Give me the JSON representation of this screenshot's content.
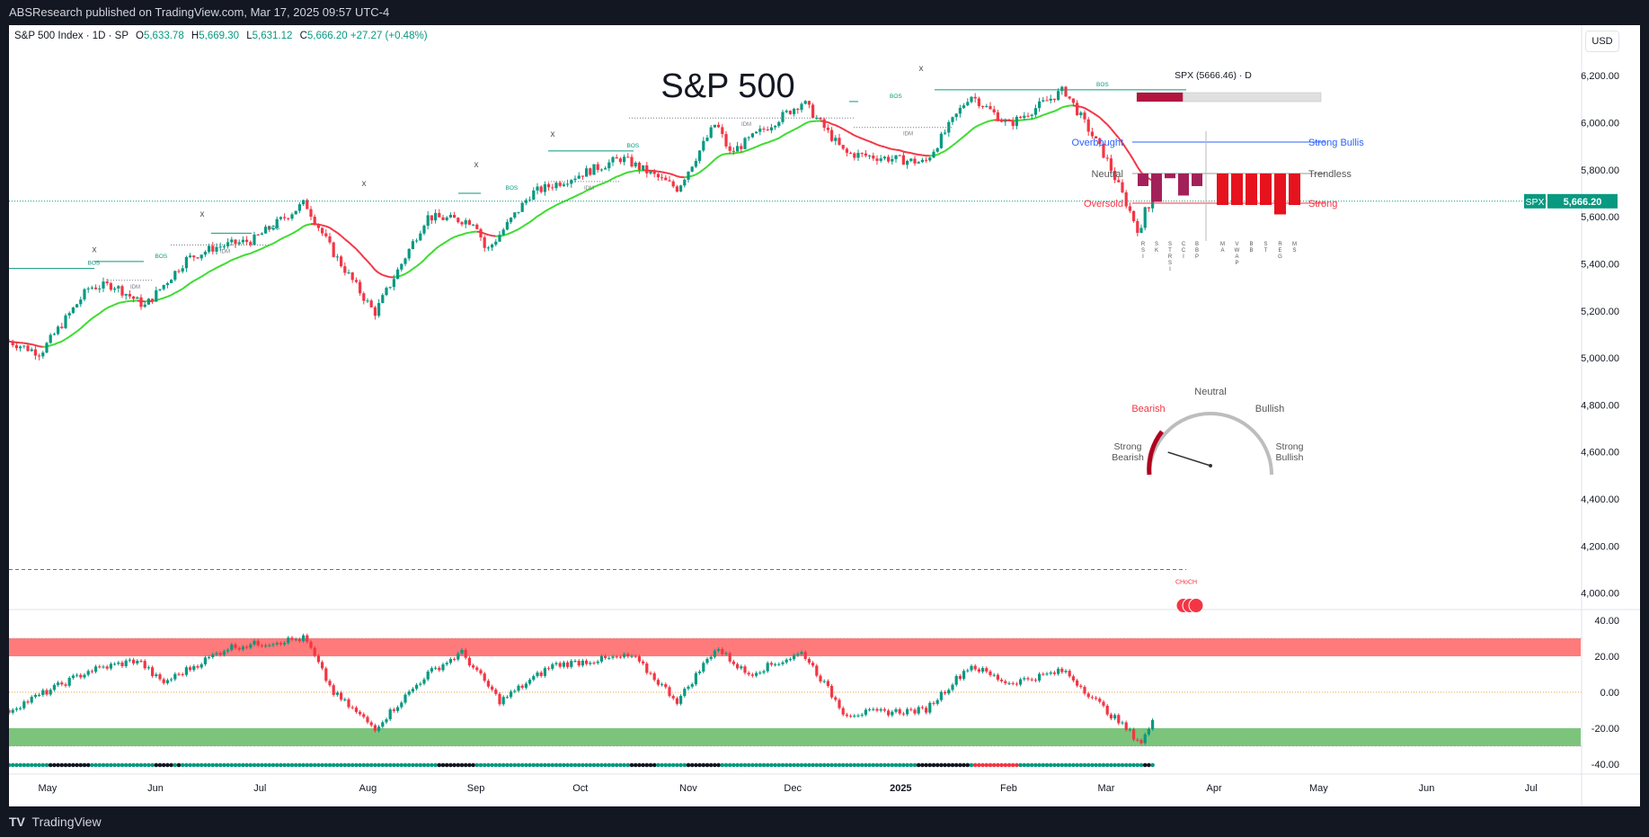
{
  "header": {
    "published_line": "ABSResearch published on TradingView.com, Mar 17, 2025 09:57 UTC-4"
  },
  "footer": {
    "brand": "TradingView"
  },
  "currency": "USD",
  "legend": {
    "symbol": "S&P 500 Index · 1D · SP",
    "open_label": "O",
    "open": "5,633.78",
    "high_label": "H",
    "high": "5,669.30",
    "low_label": "L",
    "low": "5,631.12",
    "close_label": "C",
    "close": "5,666.20",
    "change": "+27.27 (+0.48%)"
  },
  "colors": {
    "up": "#089981",
    "down": "#f23645",
    "ema_up": "#3ddc2f",
    "ema_down": "#f23645",
    "overbought_zone": "#ff7a7a",
    "oversold_zone": "#7cc47c",
    "zero_line": "#e8a33d"
  },
  "chart_data": [
    {
      "type": "candlestick",
      "title": "S&P 500",
      "x_ticks": [
        "May",
        "Jun",
        "Jul",
        "Aug",
        "Sep",
        "Oct",
        "Nov",
        "Dec",
        "2025",
        "Feb",
        "Mar",
        "Apr",
        "May",
        "Jun",
        "Jul"
      ],
      "y_ticks": [
        "6,200.00",
        "6,000.00",
        "5,800.00",
        "5,600.00",
        "5,400.00",
        "5,200.00",
        "5,000.00",
        "4,800.00",
        "4,600.00",
        "4,400.00",
        "4,200.00",
        "4,000.00"
      ],
      "ylim": [
        3930,
        6300
      ],
      "price_label_symbol": "SPX",
      "last_price": 5666.2,
      "last_price_label": "5,666.20",
      "close_path": [
        [
          "2024-04-22",
          5070
        ],
        [
          "2024-05-01",
          5020
        ],
        [
          "2024-05-15",
          5300
        ],
        [
          "2024-05-22",
          5310
        ],
        [
          "2024-05-31",
          5220
        ],
        [
          "2024-06-12",
          5420
        ],
        [
          "2024-06-20",
          5470
        ],
        [
          "2024-07-01",
          5500
        ],
        [
          "2024-07-16",
          5660
        ],
        [
          "2024-07-24",
          5450
        ],
        [
          "2024-08-05",
          5190
        ],
        [
          "2024-08-20",
          5600
        ],
        [
          "2024-09-03",
          5580
        ],
        [
          "2024-09-06",
          5450
        ],
        [
          "2024-09-19",
          5700
        ],
        [
          "2024-10-15",
          5850
        ],
        [
          "2024-10-31",
          5720
        ],
        [
          "2024-11-11",
          6000
        ],
        [
          "2024-11-15",
          5870
        ],
        [
          "2024-12-06",
          6090
        ],
        [
          "2024-12-18",
          5870
        ],
        [
          "2025-01-10",
          5830
        ],
        [
          "2025-01-23",
          6120
        ],
        [
          "2025-02-03",
          5990
        ],
        [
          "2025-02-19",
          6140
        ],
        [
          "2025-03-03",
          5850
        ],
        [
          "2025-03-13",
          5520
        ],
        [
          "2025-03-14",
          5640
        ],
        [
          "2025-03-17",
          5666.2
        ]
      ],
      "structure_labels": {
        "bos": "BOS",
        "idm": "IDM",
        "choch": "CHoCH",
        "swing": "x"
      }
    },
    {
      "type": "bar",
      "title": "",
      "y_ticks": [
        "40.00",
        "20.00",
        "0.00",
        "-20.00",
        "-40.00"
      ],
      "ylim": [
        -45,
        45
      ],
      "overbought_band": [
        20,
        30
      ],
      "oversold_band": [
        -30,
        -20
      ],
      "close_path": [
        [
          "2024-04-22",
          -10
        ],
        [
          "2024-05-15",
          12
        ],
        [
          "2024-05-29",
          18
        ],
        [
          "2024-06-05",
          5
        ],
        [
          "2024-06-24",
          25
        ],
        [
          "2024-07-16",
          30
        ],
        [
          "2024-07-24",
          0
        ],
        [
          "2024-08-05",
          -20
        ],
        [
          "2024-08-20",
          10
        ],
        [
          "2024-08-30",
          22
        ],
        [
          "2024-09-10",
          -5
        ],
        [
          "2024-09-25",
          15
        ],
        [
          "2024-10-08",
          18
        ],
        [
          "2024-10-18",
          20
        ],
        [
          "2024-10-31",
          -5
        ],
        [
          "2024-11-11",
          25
        ],
        [
          "2024-11-20",
          10
        ],
        [
          "2024-12-06",
          22
        ],
        [
          "2024-12-18",
          -12
        ],
        [
          "2025-01-10",
          -10
        ],
        [
          "2025-01-23",
          15
        ],
        [
          "2025-02-03",
          5
        ],
        [
          "2025-02-19",
          12
        ],
        [
          "2025-03-03",
          -10
        ],
        [
          "2025-03-13",
          -28
        ],
        [
          "2025-03-17",
          -15
        ]
      ]
    }
  ],
  "dashboard": {
    "title": "SPX (5666.46) · D",
    "overbought": "Overbought",
    "neutral": "Neutral",
    "oversold": "Oversold",
    "strong_bullish": "Strong Bullis",
    "trendless": "Trendless",
    "strong_bearish_short": "Strong",
    "oscillators": [
      {
        "label": "R S I",
        "value": -0.4
      },
      {
        "label": "S K",
        "value": -0.9
      },
      {
        "label": "S T R S I",
        "value": -0.15
      },
      {
        "label": "C C I",
        "value": -0.7
      },
      {
        "label": "B B P",
        "value": -0.4
      }
    ],
    "trend": [
      {
        "label": "M A",
        "value": -1.0
      },
      {
        "label": "V W A P",
        "value": -1.0
      },
      {
        "label": "B B",
        "value": -1.0
      },
      {
        "label": "S T",
        "value": -1.0
      },
      {
        "label": "R E G",
        "value": -1.3
      },
      {
        "label": "M S",
        "value": -1.0
      }
    ],
    "sentiment": 0.25
  },
  "gauge": {
    "neutral": "Neutral",
    "bearish": "Bearish",
    "bullish": "Bullish",
    "strong_bearish": [
      "Strong",
      "Bearish"
    ],
    "strong_bullish": [
      "Strong",
      "Bullish"
    ],
    "needle_value": 0.17
  }
}
